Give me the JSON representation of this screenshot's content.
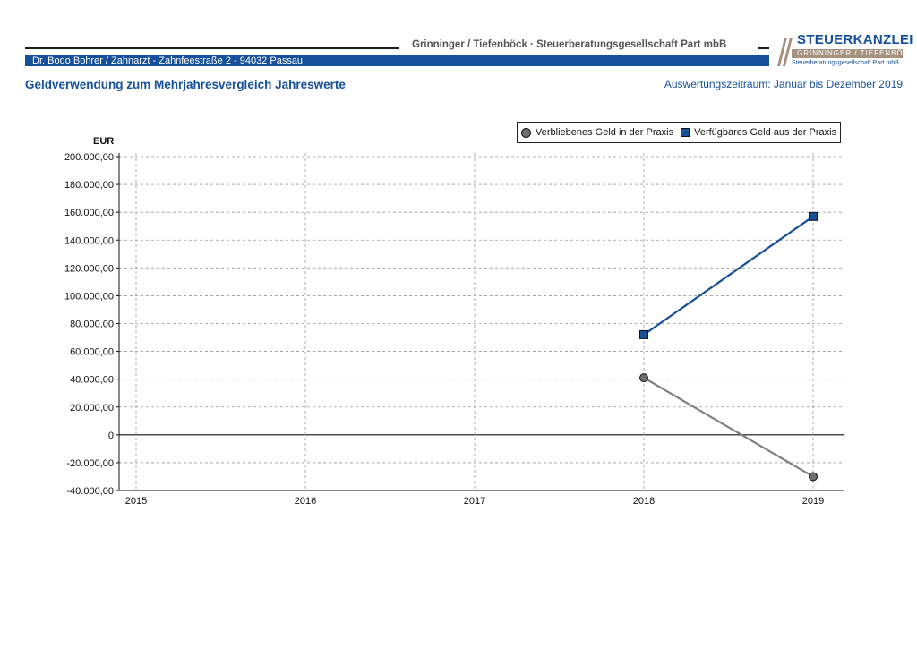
{
  "header": {
    "firm": "Grinninger / Tiefenböck · Steuerberatungsgesellschaft Part mbB",
    "client": "Dr. Bodo Bohrer / Zahnarzt  -  Zahnfeestraße 2  -  94032 Passau",
    "logo_title": "STEUERKANZLEI",
    "logo_sub1": "GRINNINGER / TIEFENBÖCK",
    "logo_sub2": "Steuerberatungsgesellschaft Part mbB"
  },
  "report": {
    "title": "Geldverwendung zum Mehrjahresvergleich Jahreswerte",
    "period": "Auswertungszeitraum: Januar bis Dezember 2019"
  },
  "colors": {
    "accent": "#16509a",
    "grey_series": "#808080",
    "logo_band": "#a7917f"
  },
  "chart_data": {
    "type": "line",
    "ylabel": "EUR",
    "ylim": [
      -40000,
      200000
    ],
    "ytick_step": 20000,
    "ytick_labels": [
      "-40.000,00",
      "-20.000,00",
      "0",
      "20.000,00",
      "40.000,00",
      "60.000,00",
      "80.000,00",
      "100.000,00",
      "120.000,00",
      "140.000,00",
      "160.000,00",
      "180.000,00",
      "200.000,00"
    ],
    "x": [
      "2015",
      "2016",
      "2017",
      "2018",
      "2019"
    ],
    "grid": true,
    "legend_placement": "top-right",
    "series": [
      {
        "name": "Verbliebenes Geld in der Praxis",
        "marker": "circle",
        "color": "#808080",
        "values": [
          null,
          null,
          null,
          41000,
          -30000
        ]
      },
      {
        "name": "Verfügbares Geld aus der Praxis",
        "marker": "square",
        "color": "#16509a",
        "values": [
          null,
          null,
          null,
          72000,
          157000
        ]
      }
    ]
  }
}
